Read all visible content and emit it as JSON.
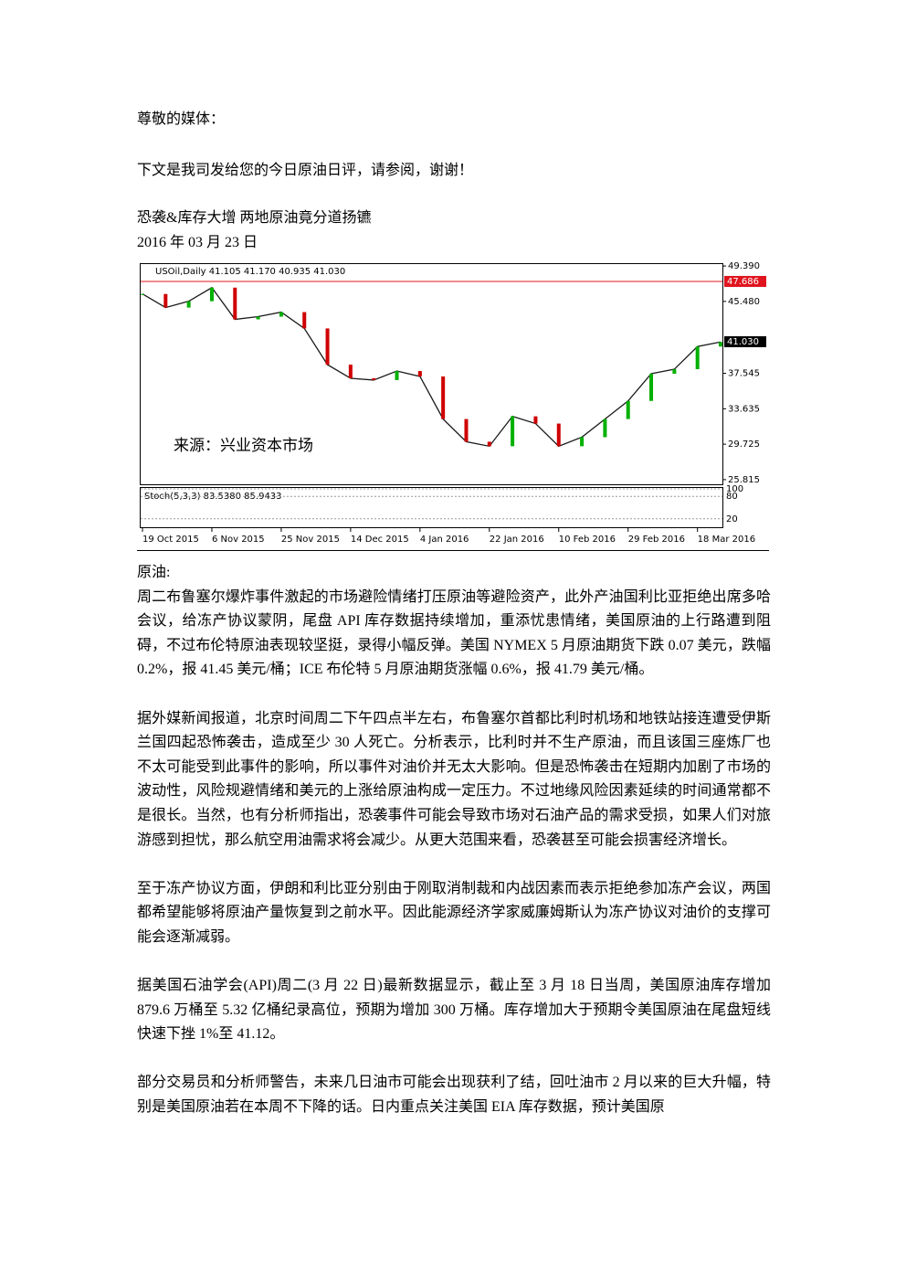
{
  "greeting": "尊敬的媒体：",
  "intro": "下文是我司发给您的今日原油日评，请参阅，谢谢！",
  "headline": "恐袭&库存大增  两地原油竟分道扬镳",
  "date": "2016 年 03 月 23 日",
  "figure": {
    "type": "line",
    "header": "USOil,Daily  41.105 41.170 40.935 41.030",
    "watermark": "来源：兴业资本市场",
    "series": [
      {
        "name": "USOil",
        "color": "#1a1a1a",
        "values": [
          46.3,
          44.8,
          45.5,
          47.0,
          43.5,
          43.8,
          44.3,
          42.5,
          38.5,
          37.0,
          36.8,
          37.8,
          37.2,
          32.5,
          30.0,
          29.5,
          32.8,
          32.0,
          29.5,
          30.5,
          32.5,
          34.5,
          37.5,
          38.0,
          40.5,
          41.0
        ]
      }
    ],
    "categories": [
      "19 Oct 2015",
      null,
      null,
      "6 Nov 2015",
      null,
      null,
      "25 Nov 2015",
      null,
      null,
      "14 Dec 2015",
      null,
      null,
      "4 Jan 2016",
      null,
      null,
      "22 Jan 2016",
      null,
      null,
      "10 Feb 2016",
      null,
      null,
      "29 Feb 2016",
      null,
      null,
      "18 Mar 2016",
      null
    ],
    "ylim": [
      25.3,
      49.6
    ],
    "yticks": [
      {
        "value": 49.39,
        "label": "49.390"
      },
      {
        "value": 45.48,
        "label": "45.480"
      },
      {
        "value": 37.545,
        "label": "37.545"
      },
      {
        "value": 33.635,
        "label": "33.635"
      },
      {
        "value": 29.725,
        "label": "29.725"
      },
      {
        "value": 25.815,
        "label": "25.815"
      }
    ],
    "level_line": {
      "value": 47.686,
      "label": "47.686",
      "color": "#e0141e"
    },
    "last_price": {
      "value": 41.03,
      "label": "41.030"
    },
    "oscillator": {
      "label": "Stoch(5,3,3) 83.5380 85.9433",
      "ylim": [
        0,
        100
      ],
      "yticks": [
        100,
        80,
        20
      ]
    }
  },
  "section_label": "原油:",
  "paragraphs": [
    "周二布鲁塞尔爆炸事件激起的市场避险情绪打压原油等避险资产，此外产油国利比亚拒绝出席多哈会议，给冻产协议蒙阴，尾盘 API 库存数据持续增加，重添忧患情绪，美国原油的上行路遭到阻碍，不过布伦特原油表现较坚挺，录得小幅反弹。美国 NYMEX 5 月原油期货下跌 0.07 美元，跌幅 0.2%，报 41.45 美元/桶；ICE 布伦特 5 月原油期货涨幅 0.6%，报 41.79 美元/桶。",
    "据外媒新闻报道，北京时间周二下午四点半左右，布鲁塞尔首都比利时机场和地铁站接连遭受伊斯兰国四起恐怖袭击，造成至少 30 人死亡。分析表示，比利时并不生产原油，而且该国三座炼厂也不太可能受到此事件的影响，所以事件对油价并无太大影响。但是恐怖袭击在短期内加剧了市场的波动性，风险规避情绪和美元的上涨给原油构成一定压力。不过地缘风险因素延续的时间通常都不是很长。当然，也有分析师指出，恐袭事件可能会导致市场对石油产品的需求受损，如果人们对旅游感到担忧，那么航空用油需求将会减少。从更大范围来看，恐袭甚至可能会损害经济增长。",
    "至于冻产协议方面，伊朗和利比亚分别由于刚取消制裁和内战因素而表示拒绝参加冻产会议，两国都希望能够将原油产量恢复到之前水平。因此能源经济学家威廉姆斯认为冻产协议对油价的支撑可能会逐渐减弱。",
    "据美国石油学会(API)周二(3 月 22 日)最新数据显示，截止至 3 月 18 日当周，美国原油库存增加 879.6 万桶至 5.32 亿桶纪录高位，预期为增加 300 万桶。库存增加大于预期令美国原油在尾盘短线快速下挫 1%至 41.12。",
    "部分交易员和分析师警告，未来几日油市可能会出现获利了结，回吐油市 2 月以来的巨大升幅，特别是美国原油若在本周不下降的话。日内重点关注美国 EIA 库存数据，预计美国原"
  ]
}
